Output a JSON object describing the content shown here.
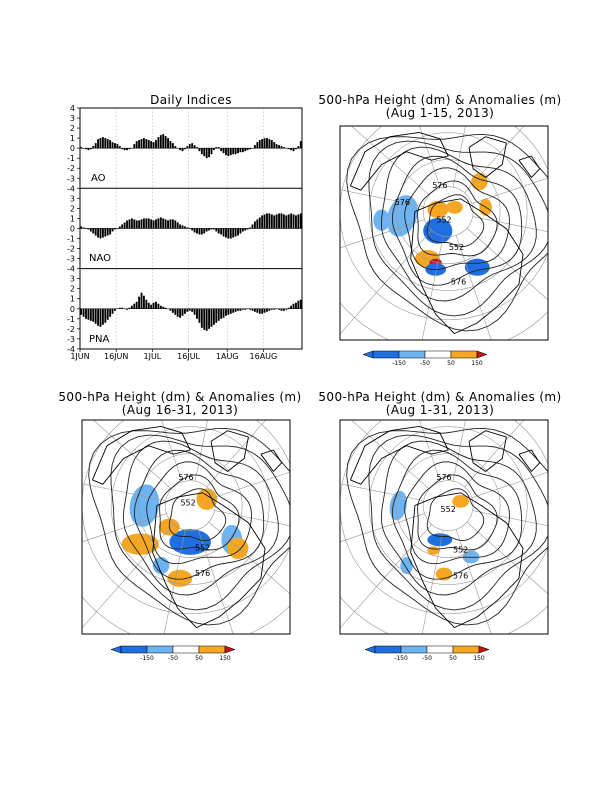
{
  "colors": {
    "deep_blue": "#1f6fe0",
    "light_blue": "#6fb4f2",
    "orange": "#f5a623",
    "red": "#c21416",
    "bar": "#000000",
    "contour": "#222222",
    "grid": "#9a9a9a",
    "coast": "#000000"
  },
  "indices_panel": {
    "title": "Daily Indices",
    "date_labels": [
      "1JUN",
      "16JUN",
      "1JUL",
      "16JUL",
      "1AUG",
      "16AUG"
    ],
    "yticks": [
      "4",
      "3",
      "2",
      "1",
      "0",
      "-1",
      "-2",
      "-3",
      "-4"
    ]
  },
  "maps": [
    {
      "title_line1": "500-hPa Height (dm) & Anomalies (m)",
      "title_line2": "(Aug 1-15, 2013)",
      "contour_labels": [
        "576",
        "552",
        "552",
        "576",
        "576"
      ]
    },
    {
      "title_line1": "500-hPa Height (dm) & Anomalies (m)",
      "title_line2": "(Aug 16-31, 2013)",
      "contour_labels": [
        "576",
        "552",
        "552",
        "576"
      ]
    },
    {
      "title_line1": "500-hPa Height (dm) & Anomalies (m)",
      "title_line2": "(Aug 1-31, 2013)",
      "contour_labels": [
        "576",
        "552",
        "552",
        "576"
      ]
    }
  ],
  "colorbar": {
    "labels": [
      "-150",
      "-50",
      "50",
      "150"
    ]
  },
  "chart_data": [
    {
      "type": "bar",
      "name": "AO",
      "ylim": [
        -4,
        4
      ],
      "values": [
        0.1,
        0,
        -0.1,
        -0.2,
        -0.1,
        0.2,
        0.5,
        0.9,
        1.0,
        1.1,
        1.0,
        0.9,
        0.8,
        0.6,
        0.5,
        0.4,
        0.2,
        -0.1,
        -0.2,
        -0.2,
        -0.1,
        0,
        0.4,
        0.7,
        0.8,
        0.9,
        1.0,
        0.9,
        0.8,
        0.7,
        0.6,
        0.8,
        1.1,
        1.3,
        1.4,
        1.2,
        1.0,
        0.7,
        0.5,
        0.2,
        0,
        -0.2,
        -0.3,
        -0.1,
        0.2,
        0.4,
        0.5,
        0.3,
        0.1,
        -0.3,
        -0.6,
        -0.8,
        -1.0,
        -0.9,
        -0.6,
        -0.2,
        0.1,
        0.1,
        -0.3,
        -0.5,
        -0.7,
        -0.8,
        -0.7,
        -0.6,
        -0.6,
        -0.5,
        -0.4,
        -0.4,
        -0.3,
        -0.2,
        -0.1,
        0,
        0.3,
        0.6,
        0.8,
        0.9,
        1.0,
        1.0,
        0.9,
        0.8,
        0.6,
        0.4,
        0.3,
        0.2,
        0.1,
        0,
        -0.1,
        -0.2,
        -0.3,
        -0.1,
        0.2,
        0.7
      ]
    },
    {
      "type": "bar",
      "name": "NAO",
      "ylim": [
        -4,
        4
      ],
      "values": [
        0.2,
        0.1,
        0,
        -0.1,
        -0.3,
        -0.5,
        -0.7,
        -0.9,
        -1.0,
        -0.9,
        -0.8,
        -0.7,
        -0.6,
        -0.3,
        -0.1,
        0,
        0.2,
        0.4,
        0.6,
        0.8,
        0.9,
        1.0,
        0.9,
        0.8,
        0.8,
        0.9,
        1.0,
        1.0,
        1.0,
        0.9,
        0.8,
        0.9,
        1.0,
        1.1,
        1.0,
        0.9,
        0.8,
        0.9,
        0.9,
        0.8,
        0.6,
        0.4,
        0.3,
        0.2,
        0.1,
        0,
        -0.2,
        -0.4,
        -0.5,
        -0.6,
        -0.6,
        -0.5,
        -0.3,
        -0.2,
        -0.1,
        -0.1,
        -0.3,
        -0.5,
        -0.6,
        -0.8,
        -0.9,
        -1.0,
        -1.0,
        -0.9,
        -0.8,
        -0.7,
        -0.5,
        -0.3,
        -0.2,
        -0.1,
        0.1,
        0.4,
        0.7,
        0.9,
        1.1,
        1.3,
        1.4,
        1.5,
        1.5,
        1.4,
        1.3,
        1.4,
        1.5,
        1.5,
        1.4,
        1.3,
        1.4,
        1.5,
        1.4,
        1.3,
        1.4,
        1.5
      ]
    },
    {
      "type": "bar",
      "name": "PNA",
      "ylim": [
        -4,
        4
      ],
      "values": [
        -0.6,
        -0.8,
        -1.0,
        -1.1,
        -1.2,
        -1.3,
        -1.5,
        -1.7,
        -1.8,
        -1.6,
        -1.4,
        -1.1,
        -0.8,
        -0.5,
        -0.2,
        0,
        0.1,
        0.1,
        0,
        -0.1,
        0.1,
        0.3,
        0.5,
        0.7,
        1.2,
        1.6,
        1.3,
        0.9,
        0.6,
        0.4,
        0.6,
        0.7,
        0.5,
        0.3,
        0.2,
        0.1,
        0,
        -0.2,
        -0.4,
        -0.6,
        -0.8,
        -0.9,
        -0.7,
        -0.5,
        -0.3,
        -0.2,
        -0.3,
        -0.6,
        -1.0,
        -1.4,
        -1.9,
        -2.1,
        -2.2,
        -2.0,
        -1.8,
        -1.6,
        -1.4,
        -1.2,
        -1.0,
        -0.9,
        -0.7,
        -0.6,
        -0.5,
        -0.4,
        -0.3,
        -0.2,
        -0.2,
        -0.1,
        -0.1,
        0,
        -0.1,
        -0.2,
        -0.3,
        -0.4,
        -0.5,
        -0.5,
        -0.4,
        -0.3,
        -0.2,
        -0.1,
        -0.1,
        0,
        -0.1,
        -0.2,
        -0.2,
        -0.1,
        0.1,
        0.3,
        0.5,
        0.6,
        0.8,
        0.9
      ]
    }
  ]
}
